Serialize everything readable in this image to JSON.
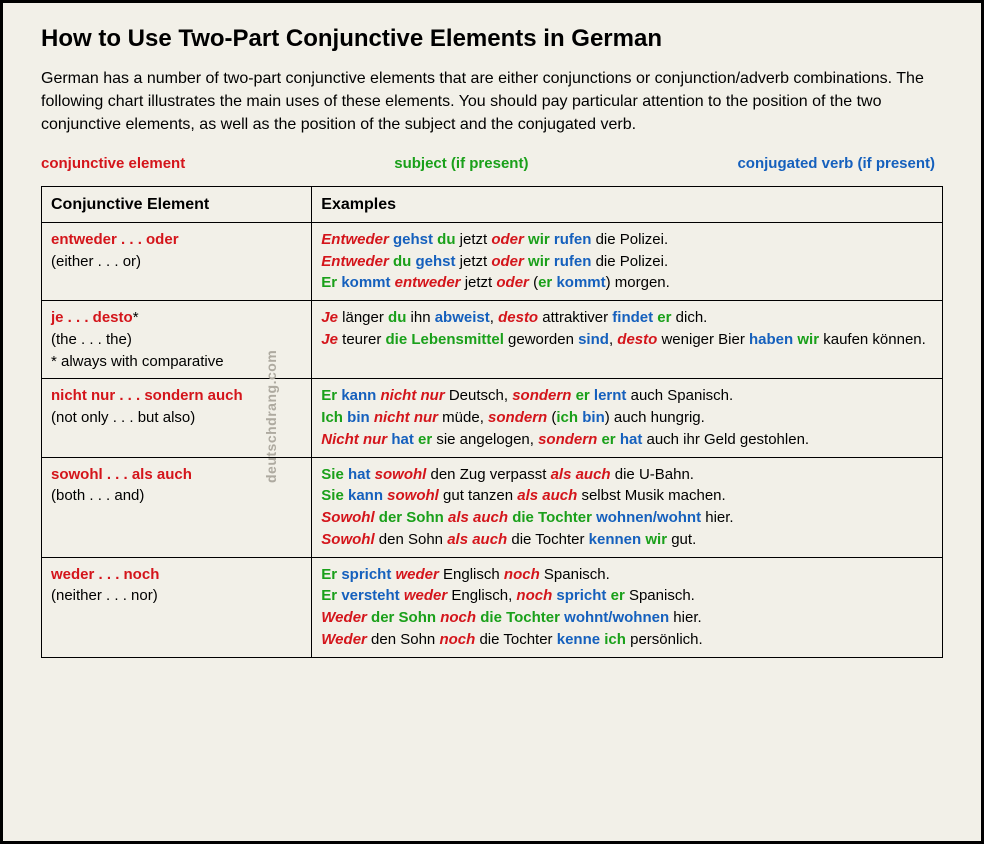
{
  "title": "How to Use Two-Part Conjunctive Elements in German",
  "intro": "German has a number of two-part conjunctive elements that are either conjunctions or conjunction/adverb combinations. The following chart illustrates the main uses of these elements. You should pay particular attention to the position of the two conjunctive elements, as well as the position of the subject and the conjugated verb.",
  "legend": {
    "conj": "conjunctive element",
    "subj": "subject (if present)",
    "verb": "conjugated verb (if present)"
  },
  "colors": {
    "conj": "#d4151b",
    "subj": "#1aa01a",
    "verb": "#1560bd",
    "bg": "#f2f0e8",
    "border": "#000000",
    "watermark": "#aeaaa0"
  },
  "fonts": {
    "family": "Verdana",
    "title_size": 24,
    "body_size": 15
  },
  "table": {
    "headers": [
      "Conjunctive Element",
      "Examples"
    ],
    "col_widths_pct": [
      30,
      70
    ],
    "rows": [
      {
        "element": "entweder . . . oder",
        "gloss": "(either . . . or)",
        "note": "",
        "examples": [
          [
            [
              "ci",
              "Entweder"
            ],
            [
              "t",
              " "
            ],
            [
              "v",
              "gehst"
            ],
            [
              "t",
              " "
            ],
            [
              "s",
              "du"
            ],
            [
              "t",
              " jetzt "
            ],
            [
              "ci",
              "oder"
            ],
            [
              "t",
              " "
            ],
            [
              "s",
              "wir"
            ],
            [
              "t",
              " "
            ],
            [
              "v",
              "rufen"
            ],
            [
              "t",
              " die Polizei."
            ]
          ],
          [
            [
              "ci",
              "Entweder"
            ],
            [
              "t",
              " "
            ],
            [
              "s",
              "du"
            ],
            [
              "t",
              " "
            ],
            [
              "v",
              "gehst"
            ],
            [
              "t",
              " jetzt "
            ],
            [
              "ci",
              "oder"
            ],
            [
              "t",
              " "
            ],
            [
              "s",
              "wir"
            ],
            [
              "t",
              " "
            ],
            [
              "v",
              "rufen"
            ],
            [
              "t",
              " die Polizei."
            ]
          ],
          [
            [
              "s",
              "Er"
            ],
            [
              "t",
              " "
            ],
            [
              "v",
              "kommt"
            ],
            [
              "t",
              " "
            ],
            [
              "ci",
              "entweder"
            ],
            [
              "t",
              " jetzt "
            ],
            [
              "ci",
              "oder"
            ],
            [
              "t",
              " ("
            ],
            [
              "s",
              "er"
            ],
            [
              "t",
              " "
            ],
            [
              "v",
              "kommt"
            ],
            [
              "t",
              ") morgen."
            ]
          ]
        ]
      },
      {
        "element": "je . . . desto",
        "element_suffix": "*",
        "gloss": "(the . . . the)",
        "note": "* always with comparative",
        "examples": [
          [
            [
              "ci",
              "Je"
            ],
            [
              "t",
              " länger "
            ],
            [
              "s",
              "du"
            ],
            [
              "t",
              " ihn "
            ],
            [
              "v",
              "abweist"
            ],
            [
              "t",
              ", "
            ],
            [
              "ci",
              "desto"
            ],
            [
              "t",
              " attraktiver "
            ],
            [
              "v",
              "findet"
            ],
            [
              "t",
              " "
            ],
            [
              "s",
              "er"
            ],
            [
              "t",
              " dich."
            ]
          ],
          [
            [
              "ci",
              "Je"
            ],
            [
              "t",
              " teurer "
            ],
            [
              "s",
              "die Lebensmittel"
            ],
            [
              "t",
              " geworden "
            ],
            [
              "v",
              "sind"
            ],
            [
              "t",
              ", "
            ],
            [
              "ci",
              "desto"
            ],
            [
              "t",
              " weniger Bier "
            ],
            [
              "v",
              "haben"
            ],
            [
              "t",
              " "
            ],
            [
              "s",
              "wir"
            ],
            [
              "t",
              " kaufen können."
            ]
          ]
        ]
      },
      {
        "element": "nicht nur . . . sondern auch",
        "gloss": "(not only . . . but also)",
        "note": "",
        "examples": [
          [
            [
              "s",
              "Er"
            ],
            [
              "t",
              " "
            ],
            [
              "v",
              "kann"
            ],
            [
              "t",
              " "
            ],
            [
              "ci",
              "nicht nur"
            ],
            [
              "t",
              " Deutsch, "
            ],
            [
              "ci",
              "sondern"
            ],
            [
              "t",
              " "
            ],
            [
              "s",
              "er"
            ],
            [
              "t",
              " "
            ],
            [
              "v",
              "lernt"
            ],
            [
              "t",
              " auch Spanisch."
            ]
          ],
          [
            [
              "s",
              "Ich"
            ],
            [
              "t",
              " "
            ],
            [
              "v",
              "bin"
            ],
            [
              "t",
              " "
            ],
            [
              "ci",
              "nicht nur"
            ],
            [
              "t",
              " müde, "
            ],
            [
              "ci",
              "sondern"
            ],
            [
              "t",
              " ("
            ],
            [
              "s",
              "ich"
            ],
            [
              "t",
              " "
            ],
            [
              "v",
              "bin"
            ],
            [
              "t",
              ") auch hungrig."
            ]
          ],
          [
            [
              "ci",
              "Nicht nur"
            ],
            [
              "t",
              " "
            ],
            [
              "v",
              "hat"
            ],
            [
              "t",
              " "
            ],
            [
              "s",
              "er"
            ],
            [
              "t",
              " sie angelogen, "
            ],
            [
              "ci",
              "sondern"
            ],
            [
              "t",
              " "
            ],
            [
              "s",
              "er"
            ],
            [
              "t",
              " "
            ],
            [
              "v",
              "hat"
            ],
            [
              "t",
              " auch ihr Geld gestohlen."
            ]
          ]
        ]
      },
      {
        "element": "sowohl . . . als auch",
        "gloss": "(both . . . and)",
        "note": "",
        "examples": [
          [
            [
              "s",
              "Sie"
            ],
            [
              "t",
              " "
            ],
            [
              "v",
              "hat"
            ],
            [
              "t",
              " "
            ],
            [
              "ci",
              "sowohl"
            ],
            [
              "t",
              " den Zug verpasst "
            ],
            [
              "ci",
              "als auch"
            ],
            [
              "t",
              " die U-Bahn."
            ]
          ],
          [
            [
              "s",
              "Sie"
            ],
            [
              "t",
              " "
            ],
            [
              "v",
              "kann"
            ],
            [
              "t",
              " "
            ],
            [
              "ci",
              "sowohl"
            ],
            [
              "t",
              " gut tanzen "
            ],
            [
              "ci",
              "als auch"
            ],
            [
              "t",
              " selbst Musik machen."
            ]
          ],
          [
            [
              "ci",
              "Sowohl"
            ],
            [
              "t",
              " "
            ],
            [
              "s",
              "der Sohn"
            ],
            [
              "t",
              " "
            ],
            [
              "ci",
              "als auch"
            ],
            [
              "t",
              " "
            ],
            [
              "s",
              "die Tochter"
            ],
            [
              "t",
              " "
            ],
            [
              "v",
              "wohnen/wohnt"
            ],
            [
              "t",
              " hier."
            ]
          ],
          [
            [
              "ci",
              "Sowohl"
            ],
            [
              "t",
              " den Sohn "
            ],
            [
              "ci",
              "als auch"
            ],
            [
              "t",
              " die Tochter "
            ],
            [
              "v",
              "kennen"
            ],
            [
              "t",
              " "
            ],
            [
              "s",
              "wir"
            ],
            [
              "t",
              " gut."
            ]
          ]
        ]
      },
      {
        "element": "weder . . . noch",
        "gloss": "(neither . . . nor)",
        "note": "",
        "examples": [
          [
            [
              "s",
              "Er"
            ],
            [
              "t",
              " "
            ],
            [
              "v",
              "spricht"
            ],
            [
              "t",
              " "
            ],
            [
              "ci",
              "weder"
            ],
            [
              "t",
              " Englisch "
            ],
            [
              "ci",
              "noch"
            ],
            [
              "t",
              " Spanisch."
            ]
          ],
          [
            [
              "s",
              "Er"
            ],
            [
              "t",
              " "
            ],
            [
              "v",
              "versteht"
            ],
            [
              "t",
              " "
            ],
            [
              "ci",
              "weder"
            ],
            [
              "t",
              " Englisch, "
            ],
            [
              "ci",
              "noch"
            ],
            [
              "t",
              " "
            ],
            [
              "v",
              "spricht"
            ],
            [
              "t",
              " "
            ],
            [
              "s",
              "er"
            ],
            [
              "t",
              " Spanisch."
            ]
          ],
          [
            [
              "ci",
              "Weder"
            ],
            [
              "t",
              " "
            ],
            [
              "s",
              "der Sohn"
            ],
            [
              "t",
              " "
            ],
            [
              "ci",
              "noch"
            ],
            [
              "t",
              " "
            ],
            [
              "s",
              "die Tochter"
            ],
            [
              "t",
              " "
            ],
            [
              "v",
              "wohnt/wohnen"
            ],
            [
              "t",
              " hier."
            ]
          ],
          [
            [
              "ci",
              "Weder"
            ],
            [
              "t",
              " den Sohn "
            ],
            [
              "ci",
              "noch"
            ],
            [
              "t",
              " die Tochter "
            ],
            [
              "v",
              "kenne"
            ],
            [
              "t",
              " "
            ],
            [
              "s",
              "ich"
            ],
            [
              "t",
              " persönlich."
            ]
          ]
        ]
      }
    ]
  },
  "watermark": "deutschdrang.com"
}
